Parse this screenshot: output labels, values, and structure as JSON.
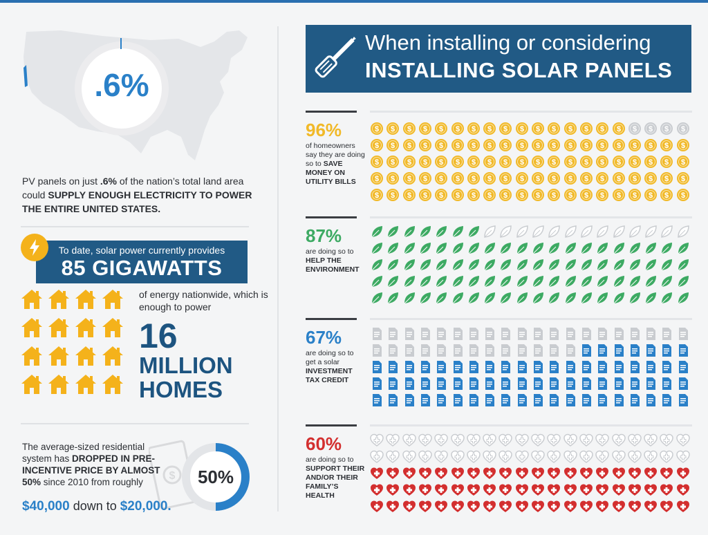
{
  "colors": {
    "blue": "#2a80c8",
    "navy": "#215a85",
    "gold": "#f1b928",
    "green": "#3daa63",
    "red": "#d32f2f",
    "gray": "#c9ccd0"
  },
  "land": {
    "percent": ".6%",
    "text_pre": "PV panels on just ",
    "text_bold1": ".6%",
    "text_mid": " of the nation’s total land area could ",
    "text_bold2": "SUPPLY ENOUGH ELECTRICITY TO POWER THE ENTIRE UNITED STATES."
  },
  "gigawatts": {
    "line1": "To date, solar power currently provides",
    "line2": "85 GIGAWATTS",
    "icon": "lightning-bolt-icon"
  },
  "homes": {
    "sub": "of energy nationwide, which is enough to power",
    "number": "16",
    "line1": "MILLION",
    "line2": "HOMES",
    "icon": "house-icon",
    "icon_count": 16
  },
  "price": {
    "text_pre": "The average-sized residential system has ",
    "text_bold": "DROPPED IN PRE-INCENTIVE PRICE BY ALMOST 50%",
    "text_post": " since 2010 from roughly",
    "from_value": "$40,000",
    "mid": " down to ",
    "to_value": "$20,000.",
    "donut_label": "50%",
    "donut_fraction": 0.5,
    "icon": "cash-icon"
  },
  "header": {
    "line1": "When installing or considering",
    "line2": "INSTALLING SOLAR PANELS",
    "icon": "screwdriver-icon"
  },
  "stats": [
    {
      "pct": "96%",
      "color": "#f1b928",
      "desc_plain": "of homeowners say they are doing so to",
      "desc_bold": "SAVE MONEY ON UTILITY BILLS",
      "icon": "coin-icon",
      "filled": 96
    },
    {
      "pct": "87%",
      "color": "#3daa63",
      "desc_plain": "are doing so to",
      "desc_bold": "HELP THE ENVIRONMENT",
      "icon": "leaf-icon",
      "filled": 87
    },
    {
      "pct": "67%",
      "color": "#2a80c8",
      "desc_plain": "are doing so to get a solar",
      "desc_bold": "INVESTMENT TAX CREDIT",
      "icon": "document-icon",
      "filled": 67
    },
    {
      "pct": "60%",
      "color": "#d32f2f",
      "desc_plain": "are doing so to",
      "desc_bold": "SUPPORT THEIR AND/OR THEIR FAMILY’S HEALTH",
      "icon": "heart-plus-icon",
      "filled": 60
    }
  ]
}
